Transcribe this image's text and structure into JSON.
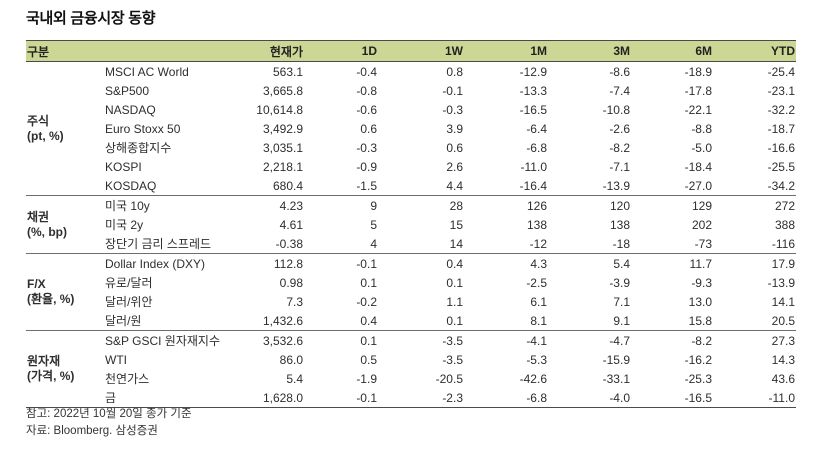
{
  "title": "국내외 금융시장 동향",
  "colors": {
    "header_bg": "#ccd795",
    "rule_dark": "#4a4a4a",
    "rule_light": "#6e6e6e"
  },
  "table": {
    "headers": [
      "구분",
      "현재가",
      "1D",
      "1W",
      "1M",
      "3M",
      "6M",
      "YTD"
    ],
    "groups": [
      {
        "label": "주식",
        "sublabel": "(pt, %)",
        "rows": [
          {
            "name": "MSCI AC World",
            "values": [
              "563.1",
              "-0.4",
              "0.8",
              "-12.9",
              "-8.6",
              "-18.9",
              "-25.4"
            ]
          },
          {
            "name": "S&P500",
            "values": [
              "3,665.8",
              "-0.8",
              "-0.1",
              "-13.3",
              "-7.4",
              "-17.8",
              "-23.1"
            ]
          },
          {
            "name": "NASDAQ",
            "values": [
              "10,614.8",
              "-0.6",
              "-0.3",
              "-16.5",
              "-10.8",
              "-22.1",
              "-32.2"
            ]
          },
          {
            "name": "Euro Stoxx 50",
            "values": [
              "3,492.9",
              "0.6",
              "3.9",
              "-6.4",
              "-2.6",
              "-8.8",
              "-18.7"
            ]
          },
          {
            "name": "상해종합지수",
            "values": [
              "3,035.1",
              "-0.3",
              "0.6",
              "-6.8",
              "-8.2",
              "-5.0",
              "-16.6"
            ]
          },
          {
            "name": "KOSPI",
            "values": [
              "2,218.1",
              "-0.9",
              "2.6",
              "-11.0",
              "-7.1",
              "-18.4",
              "-25.5"
            ]
          },
          {
            "name": "KOSDAQ",
            "values": [
              "680.4",
              "-1.5",
              "4.4",
              "-16.4",
              "-13.9",
              "-27.0",
              "-34.2"
            ]
          }
        ]
      },
      {
        "label": "채권",
        "sublabel": "(%, bp)",
        "rows": [
          {
            "name": "미국 10y",
            "values": [
              "4.23",
              "9",
              "28",
              "126",
              "120",
              "129",
              "272"
            ]
          },
          {
            "name": "미국 2y",
            "values": [
              "4.61",
              "5",
              "15",
              "138",
              "138",
              "202",
              "388"
            ]
          },
          {
            "name": "장단기 금리 스프레드",
            "values": [
              "-0.38",
              "4",
              "14",
              "-12",
              "-18",
              "-73",
              "-116"
            ]
          }
        ]
      },
      {
        "label": "F/X",
        "sublabel": "(환율, %)",
        "rows": [
          {
            "name": "Dollar Index (DXY)",
            "values": [
              "112.8",
              "-0.1",
              "0.4",
              "4.3",
              "5.4",
              "11.7",
              "17.9"
            ]
          },
          {
            "name": "유로/달러",
            "values": [
              "0.98",
              "0.1",
              "0.1",
              "-2.5",
              "-3.9",
              "-9.3",
              "-13.9"
            ]
          },
          {
            "name": "달러/위안",
            "values": [
              "7.3",
              "-0.2",
              "1.1",
              "6.1",
              "7.1",
              "13.0",
              "14.1"
            ]
          },
          {
            "name": "달러/원",
            "values": [
              "1,432.6",
              "0.4",
              "0.1",
              "8.1",
              "9.1",
              "15.8",
              "20.5"
            ]
          }
        ]
      },
      {
        "label": "원자재",
        "sublabel": "(가격, %)",
        "rows": [
          {
            "name": "S&P GSCI 원자재지수",
            "values": [
              "3,532.6",
              "0.1",
              "-3.5",
              "-4.1",
              "-4.7",
              "-8.2",
              "27.3"
            ]
          },
          {
            "name": "WTI",
            "values": [
              "86.0",
              "0.5",
              "-3.5",
              "-5.3",
              "-15.9",
              "-16.2",
              "14.3"
            ]
          },
          {
            "name": "천연가스",
            "values": [
              "5.4",
              "-1.9",
              "-20.5",
              "-42.6",
              "-33.1",
              "-25.3",
              "43.6"
            ]
          },
          {
            "name": "금",
            "values": [
              "1,628.0",
              "-0.1",
              "-2.3",
              "-6.8",
              "-4.0",
              "-16.5",
              "-11.0"
            ]
          }
        ]
      }
    ]
  },
  "footnotes": [
    "참고: 2022년 10월 20일 종가 기준",
    "자료: Bloomberg. 삼성증권"
  ]
}
